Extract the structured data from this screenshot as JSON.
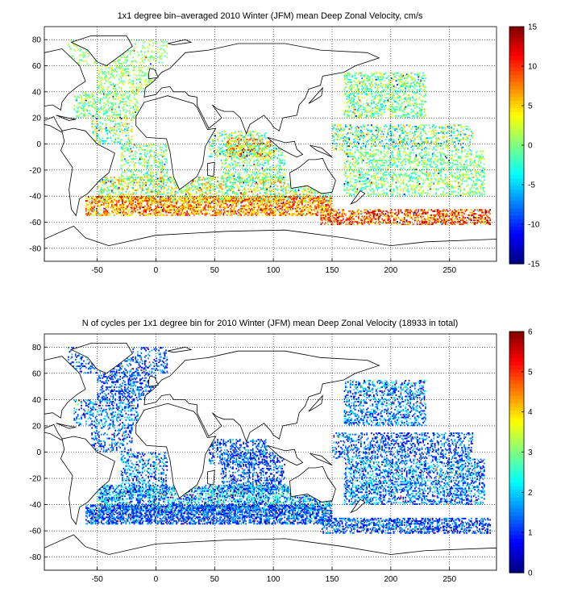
{
  "chart_data": [
    {
      "type": "heatmap",
      "title": "1x1 degree bin–averaged 2010 Winter (JFM) mean Deep Zonal Velocity, cm/s",
      "xlabel": "",
      "ylabel": "",
      "xlim": [
        -95,
        290
      ],
      "ylim": [
        -90,
        90
      ],
      "x_ticks": [
        -50,
        0,
        50,
        100,
        150,
        200,
        250
      ],
      "y_ticks": [
        80,
        60,
        40,
        20,
        0,
        -20,
        -40,
        -60,
        -80
      ],
      "grid": true,
      "colorbar": {
        "min": -15,
        "max": 15,
        "ticks": [
          15,
          10,
          5,
          0,
          -5,
          -10,
          -15
        ],
        "colormap": "jet"
      },
      "density_bands": [
        {
          "lat": [
            60,
            80
          ],
          "lon": [
            -75,
            10
          ],
          "density": 0.2,
          "value_range": [
            -2,
            3
          ]
        },
        {
          "lat": [
            40,
            60
          ],
          "lon": [
            -50,
            0
          ],
          "density": 0.28,
          "value_range": [
            -3,
            4
          ]
        },
        {
          "lat": [
            20,
            40
          ],
          "lon": [
            -70,
            -15
          ],
          "density": 0.3,
          "value_range": [
            -4,
            4
          ]
        },
        {
          "lat": [
            0,
            20
          ],
          "lon": [
            -55,
            -20
          ],
          "density": 0.25,
          "value_range": [
            -6,
            6
          ]
        },
        {
          "lat": [
            -10,
            10
          ],
          "lon": [
            45,
            95
          ],
          "density": 0.3,
          "value_range": [
            -6,
            6
          ]
        },
        {
          "lat": [
            -10,
            5
          ],
          "lon": [
            60,
            100
          ],
          "density": 0.25,
          "value_range": [
            3,
            12
          ]
        },
        {
          "lat": [
            -30,
            0
          ],
          "lon": [
            -30,
            10
          ],
          "density": 0.28,
          "value_range": [
            -5,
            5
          ]
        },
        {
          "lat": [
            -30,
            0
          ],
          "lon": [
            55,
            110
          ],
          "density": 0.28,
          "value_range": [
            -5,
            5
          ]
        },
        {
          "lat": [
            20,
            55
          ],
          "lon": [
            160,
            230
          ],
          "density": 0.32,
          "value_range": [
            -5,
            5
          ]
        },
        {
          "lat": [
            -5,
            15
          ],
          "lon": [
            150,
            270
          ],
          "density": 0.3,
          "value_range": [
            -8,
            6
          ]
        },
        {
          "lat": [
            -40,
            -5
          ],
          "lon": [
            160,
            280
          ],
          "density": 0.3,
          "value_range": [
            -4,
            4
          ]
        },
        {
          "lat": [
            -45,
            -25
          ],
          "lon": [
            -50,
            150
          ],
          "density": 0.35,
          "value_range": [
            -5,
            8
          ]
        },
        {
          "lat": [
            -55,
            -40
          ],
          "lon": [
            -60,
            150
          ],
          "density": 0.5,
          "value_range": [
            2,
            12
          ]
        },
        {
          "lat": [
            -62,
            -50
          ],
          "lon": [
            140,
            285
          ],
          "density": 0.45,
          "value_range": [
            4,
            14
          ]
        }
      ]
    },
    {
      "type": "heatmap",
      "title": "N of cycles per 1x1 degree bin for 2010 Winter (JFM) mean Deep Zonal Velocity (18933 in total)",
      "xlabel": "",
      "ylabel": "",
      "xlim": [
        -95,
        290
      ],
      "ylim": [
        -90,
        90
      ],
      "x_ticks": [
        -50,
        0,
        50,
        100,
        150,
        200,
        250
      ],
      "y_ticks": [
        80,
        60,
        40,
        20,
        0,
        -20,
        -40,
        -60,
        -80
      ],
      "grid": true,
      "colorbar": {
        "min": 0,
        "max": 6,
        "ticks": [
          6,
          5,
          4,
          3,
          2,
          1,
          0
        ],
        "colormap": "jet"
      },
      "density_bands": [
        {
          "lat": [
            60,
            80
          ],
          "lon": [
            -75,
            10
          ],
          "density": 0.25,
          "value_range": [
            0.5,
            2
          ]
        },
        {
          "lat": [
            40,
            60
          ],
          "lon": [
            -50,
            0
          ],
          "density": 0.3,
          "value_range": [
            0.5,
            2
          ]
        },
        {
          "lat": [
            20,
            40
          ],
          "lon": [
            -70,
            -15
          ],
          "density": 0.3,
          "value_range": [
            0.5,
            2.5
          ]
        },
        {
          "lat": [
            0,
            20
          ],
          "lon": [
            -55,
            -20
          ],
          "density": 0.25,
          "value_range": [
            0.5,
            2
          ]
        },
        {
          "lat": [
            -10,
            10
          ],
          "lon": [
            45,
            95
          ],
          "density": 0.3,
          "value_range": [
            0.5,
            2
          ]
        },
        {
          "lat": [
            -30,
            0
          ],
          "lon": [
            -30,
            10
          ],
          "density": 0.3,
          "value_range": [
            0.5,
            2.5
          ]
        },
        {
          "lat": [
            -30,
            0
          ],
          "lon": [
            55,
            110
          ],
          "density": 0.3,
          "value_range": [
            0.5,
            2
          ]
        },
        {
          "lat": [
            20,
            55
          ],
          "lon": [
            160,
            230
          ],
          "density": 0.32,
          "value_range": [
            0.5,
            2.5
          ]
        },
        {
          "lat": [
            -5,
            15
          ],
          "lon": [
            150,
            270
          ],
          "density": 0.3,
          "value_range": [
            0.5,
            2
          ]
        },
        {
          "lat": [
            -40,
            -5
          ],
          "lon": [
            160,
            280
          ],
          "density": 0.35,
          "value_range": [
            0.5,
            2.5
          ]
        },
        {
          "lat": [
            -45,
            -25
          ],
          "lon": [
            -50,
            150
          ],
          "density": 0.45,
          "value_range": [
            0.5,
            3
          ]
        },
        {
          "lat": [
            -55,
            -40
          ],
          "lon": [
            -60,
            150
          ],
          "density": 0.55,
          "value_range": [
            0.5,
            2
          ]
        },
        {
          "lat": [
            -62,
            -50
          ],
          "lon": [
            140,
            285
          ],
          "density": 0.4,
          "value_range": [
            0.5,
            2
          ]
        }
      ]
    }
  ],
  "map": {
    "coastline_color": "#000000",
    "background_color": "#ffffff",
    "grid_color": "#000000"
  }
}
